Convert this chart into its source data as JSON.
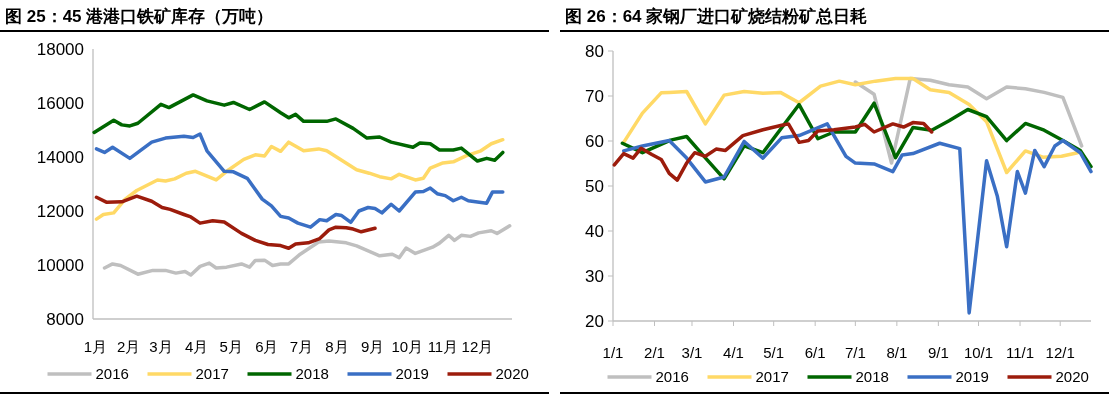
{
  "chart_data": [
    {
      "type": "line",
      "title": "图 25：45 港港口铁矿库存（万吨）",
      "legend": "bottom",
      "grid": false,
      "line_style": "solid",
      "marker": "none",
      "xlim": [
        "--01-01",
        "--12-31"
      ],
      "xticks": [
        {
          "value": "--01-03",
          "label": "1月"
        },
        {
          "value": "--02-01",
          "label": "2月"
        },
        {
          "value": "--03-01",
          "label": "3月"
        },
        {
          "value": "--04-01",
          "label": "4月"
        },
        {
          "value": "--05-01",
          "label": "5月"
        },
        {
          "value": "--06-01",
          "label": "6月"
        },
        {
          "value": "--07-01",
          "label": "7月"
        },
        {
          "value": "--08-01",
          "label": "8月"
        },
        {
          "value": "--09-01",
          "label": "9月"
        },
        {
          "value": "--10-01",
          "label": "10月"
        },
        {
          "value": "--11-01",
          "label": "11月"
        },
        {
          "value": "--12-01",
          "label": "12月"
        }
      ],
      "ylim": [
        8000,
        18000
      ],
      "yticks": [
        8000,
        10000,
        12000,
        14000,
        16000,
        18000
      ],
      "series": [
        {
          "name": "2016",
          "color": "#bfbfbf",
          "x": [
            "--01-11",
            "--01-18",
            "--01-25",
            "--02-09",
            "--02-22",
            "--03-05",
            "--03-14",
            "--03-22",
            "--03-27",
            "--04-04",
            "--04-12",
            "--04-18",
            "--04-27",
            "--05-10",
            "--05-17",
            "--05-22",
            "--05-30",
            "--06-06",
            "--06-13",
            "--06-20",
            "--06-30",
            "--07-16",
            "--07-25",
            "--08-09",
            "--08-18",
            "--09-07",
            "--09-18",
            "--09-24",
            "--09-30",
            "--10-08",
            "--10-23",
            "--10-29",
            "--11-06",
            "--11-11",
            "--11-17",
            "--11-25",
            "--12-02",
            "--12-13",
            "--12-18",
            "--12-29"
          ],
          "values": [
            9890,
            10040,
            9980,
            9660,
            9800,
            9800,
            9700,
            9760,
            9630,
            9950,
            10070,
            9890,
            9920,
            10040,
            9920,
            10170,
            10180,
            9980,
            10040,
            10040,
            10400,
            10850,
            10890,
            10820,
            10710,
            10340,
            10400,
            10270,
            10630,
            10430,
            10660,
            10810,
            11100,
            10910,
            11100,
            11060,
            11190,
            11270,
            11170,
            11450
          ]
        },
        {
          "name": "2017",
          "color": "#ffd966",
          "x": [
            "--01-04",
            "--01-10",
            "--01-19",
            "--01-29",
            "--02-08",
            "--02-26",
            "--03-05",
            "--03-13",
            "--03-23",
            "--03-31",
            "--04-18",
            "--04-29",
            "--05-12",
            "--05-22",
            "--05-30",
            "--06-05",
            "--06-13",
            "--06-20",
            "--07-03",
            "--07-16",
            "--07-23",
            "--08-04",
            "--08-18",
            "--08-29",
            "--09-07",
            "--09-17",
            "--09-24",
            "--10-08",
            "--10-15",
            "--10-21",
            "--11-01",
            "--11-10",
            "--11-21",
            "--12-04",
            "--12-13",
            "--12-23"
          ],
          "values": [
            11700,
            11870,
            11930,
            12440,
            12760,
            13150,
            13110,
            13190,
            13400,
            13470,
            13150,
            13530,
            13910,
            14080,
            14040,
            14390,
            14210,
            14550,
            14230,
            14300,
            14230,
            13910,
            13530,
            13400,
            13270,
            13190,
            13360,
            13150,
            13210,
            13590,
            13780,
            13820,
            14040,
            14230,
            14490,
            14640
          ]
        },
        {
          "name": "2018",
          "color": "#006600",
          "x": [
            "--01-02",
            "--01-19",
            "--01-26",
            "--02-02",
            "--02-09",
            "--03-01",
            "--03-08",
            "--03-29",
            "--04-10",
            "--04-25",
            "--05-03",
            "--05-17",
            "--05-30",
            "--06-13",
            "--06-20",
            "--06-26",
            "--07-03",
            "--07-23",
            "--07-31",
            "--08-15",
            "--08-27",
            "--09-07",
            "--09-17",
            "--10-06",
            "--10-12",
            "--10-21",
            "--10-29",
            "--11-10",
            "--11-17",
            "--12-01",
            "--12-09",
            "--12-16",
            "--12-23"
          ],
          "values": [
            14910,
            15360,
            15190,
            15150,
            15250,
            15950,
            15830,
            16300,
            16080,
            15920,
            16020,
            15760,
            16040,
            15640,
            15450,
            15580,
            15320,
            15320,
            15410,
            15060,
            14700,
            14740,
            14550,
            14360,
            14520,
            14490,
            14260,
            14260,
            14330,
            13850,
            13950,
            13880,
            14170
          ]
        },
        {
          "name": "2019",
          "color": "#3a6fc4",
          "x": [
            "--01-04",
            "--01-11",
            "--01-18",
            "--02-02",
            "--02-21",
            "--03-05",
            "--03-21",
            "--03-29",
            "--04-04",
            "--04-10",
            "--04-25",
            "--05-03",
            "--05-15",
            "--05-28",
            "--06-05",
            "--06-13",
            "--06-20",
            "--06-28",
            "--07-09",
            "--07-17",
            "--07-23",
            "--07-31",
            "--08-05",
            "--08-13",
            "--08-20",
            "--08-28",
            "--09-03",
            "--09-09",
            "--09-17",
            "--09-24",
            "--10-08",
            "--10-15",
            "--10-21",
            "--10-27",
            "--11-03",
            "--11-10",
            "--11-17",
            "--11-23",
            "--12-09",
            "--12-14",
            "--12-23"
          ],
          "values": [
            14300,
            14170,
            14360,
            13950,
            14550,
            14700,
            14770,
            14720,
            14850,
            14230,
            13470,
            13450,
            13210,
            12440,
            12190,
            11800,
            11740,
            11550,
            11400,
            11680,
            11640,
            11870,
            11830,
            11580,
            12000,
            12130,
            12090,
            11930,
            12250,
            12000,
            12700,
            12720,
            12850,
            12640,
            12570,
            12380,
            12510,
            12380,
            12290,
            12700,
            12700
          ]
        },
        {
          "name": "2020",
          "color": "#9c1c0c",
          "x": [
            "--01-04",
            "--01-13",
            "--01-26",
            "--02-08",
            "--02-21",
            "--03-02",
            "--03-09",
            "--03-21",
            "--03-27",
            "--04-04",
            "--04-15",
            "--04-25",
            "--05-10",
            "--05-22",
            "--06-02",
            "--06-13",
            "--06-20",
            "--06-26",
            "--07-07",
            "--07-17",
            "--07-25",
            "--07-31",
            "--08-09",
            "--08-15",
            "--08-22",
            "--09-03"
          ],
          "values": [
            12510,
            12320,
            12340,
            12550,
            12360,
            12130,
            12060,
            11870,
            11780,
            11550,
            11640,
            11590,
            11170,
            10910,
            10760,
            10720,
            10620,
            10780,
            10820,
            10980,
            11300,
            11400,
            11380,
            11330,
            11230,
            11360
          ]
        }
      ]
    },
    {
      "type": "line",
      "title": "图 26：64 家钢厂进口矿烧结粉矿总日耗",
      "legend": "bottom",
      "grid": false,
      "line_style": "solid",
      "marker": "none",
      "xlim": [
        "--01-01",
        "--12-24"
      ],
      "xticks": [
        {
          "value": "--01-01",
          "label": "1/1"
        },
        {
          "value": "--02-01",
          "label": "2/1"
        },
        {
          "value": "--03-01",
          "label": "3/1"
        },
        {
          "value": "--04-01",
          "label": "4/1"
        },
        {
          "value": "--05-01",
          "label": "5/1"
        },
        {
          "value": "--06-01",
          "label": "6/1"
        },
        {
          "value": "--07-01",
          "label": "7/1"
        },
        {
          "value": "--08-01",
          "label": "8/1"
        },
        {
          "value": "--09-01",
          "label": "9/1"
        },
        {
          "value": "--10-01",
          "label": "10/1"
        },
        {
          "value": "--11-01",
          "label": "11/1"
        },
        {
          "value": "--12-01",
          "label": "12/1"
        }
      ],
      "ylim": [
        20,
        80
      ],
      "yticks": [
        20,
        30,
        40,
        50,
        60,
        70,
        80
      ],
      "series": [
        {
          "name": "2016",
          "color": "#bfbfbf",
          "x": [
            "--07-01",
            "--07-15",
            "--07-28",
            "--08-11",
            "--08-26",
            "--09-09",
            "--09-23",
            "--10-07",
            "--10-22",
            "--11-05",
            "--11-19",
            "--12-03",
            "--12-17"
          ],
          "values": [
            73.1,
            70.4,
            55.1,
            73.9,
            73.5,
            72.5,
            72.0,
            69.4,
            72.0,
            71.6,
            70.8,
            69.7,
            58.9
          ]
        },
        {
          "name": "2017",
          "color": "#ffd966",
          "x": [
            "--01-09",
            "--01-23",
            "--02-06",
            "--02-12",
            "--02-25",
            "--03-11",
            "--03-25",
            "--04-09",
            "--04-23",
            "--05-06",
            "--05-20",
            "--06-05",
            "--06-19",
            "--07-01",
            "--07-16",
            "--07-31",
            "--08-13",
            "--08-26",
            "--09-09",
            "--09-24",
            "--10-07",
            "--10-22",
            "--11-05",
            "--11-18",
            "--12-02",
            "--12-14"
          ],
          "values": [
            59.7,
            66.2,
            70.7,
            70.8,
            71.0,
            63.8,
            70.2,
            71.0,
            70.6,
            70.8,
            68.5,
            72.2,
            73.3,
            72.5,
            73.3,
            73.9,
            73.9,
            71.4,
            70.8,
            68.1,
            64.3,
            53.0,
            57.8,
            56.4,
            56.6,
            57.4
          ]
        },
        {
          "name": "2018",
          "color": "#006600",
          "x": [
            "--01-08",
            "--01-23",
            "--02-13",
            "--02-25",
            "--03-10",
            "--03-25",
            "--04-09",
            "--04-23",
            "--05-20",
            "--06-03",
            "--06-15",
            "--07-01",
            "--07-15",
            "--07-31",
            "--08-13",
            "--08-27",
            "--09-09",
            "--09-23",
            "--10-07",
            "--10-22",
            "--11-05",
            "--11-19",
            "--12-03",
            "--12-16",
            "--12-24"
          ],
          "values": [
            59.5,
            57.4,
            60.2,
            61.0,
            56.6,
            51.6,
            58.9,
            57.4,
            68.1,
            60.5,
            62.0,
            62.0,
            68.4,
            56.3,
            63.0,
            62.4,
            64.5,
            67.0,
            65.4,
            60.1,
            63.9,
            62.4,
            60.1,
            57.9,
            54.3
          ]
        },
        {
          "name": "2019",
          "color": "#3a6fc4",
          "x": [
            "--01-09",
            "--01-23",
            "--02-12",
            "--02-25",
            "--03-11",
            "--03-25",
            "--04-09",
            "--04-23",
            "--05-07",
            "--05-20",
            "--06-10",
            "--06-24",
            "--07-01",
            "--07-15",
            "--07-29",
            "--08-05",
            "--08-13",
            "--09-02",
            "--09-17",
            "--09-24",
            "--10-07",
            "--10-15",
            "--10-22",
            "--10-30",
            "--11-05",
            "--11-12",
            "--11-19",
            "--11-27",
            "--12-03",
            "--12-16",
            "--12-24"
          ],
          "values": [
            57.8,
            58.9,
            60.1,
            56.2,
            50.9,
            52.0,
            59.9,
            56.2,
            60.7,
            61.2,
            63.8,
            56.6,
            55.1,
            54.9,
            53.2,
            56.9,
            57.2,
            59.5,
            58.3,
            21.8,
            55.6,
            47.8,
            36.5,
            53.2,
            48.4,
            57.9,
            54.3,
            58.9,
            60.1,
            57.4,
            53.2
          ]
        },
        {
          "name": "2020",
          "color": "#9c1c0c",
          "x": [
            "--01-02",
            "--01-09",
            "--01-16",
            "--01-22",
            "--01-30",
            "--02-06",
            "--02-12",
            "--02-18",
            "--02-25",
            "--03-03",
            "--03-11",
            "--03-19",
            "--03-26",
            "--04-08",
            "--04-23",
            "--05-07",
            "--05-12",
            "--05-20",
            "--05-27",
            "--06-03",
            "--06-15",
            "--07-01",
            "--07-08",
            "--07-15",
            "--07-29",
            "--08-06",
            "--08-13",
            "--08-21",
            "--08-27"
          ],
          "values": [
            54.7,
            57.2,
            56.2,
            58.4,
            57.0,
            55.9,
            52.8,
            51.3,
            55.1,
            57.4,
            56.6,
            58.2,
            57.9,
            61.2,
            62.5,
            63.5,
            63.8,
            59.7,
            60.1,
            62.2,
            62.5,
            63.1,
            63.7,
            62.0,
            63.8,
            63.1,
            64.1,
            63.9,
            62.0
          ]
        }
      ]
    }
  ]
}
